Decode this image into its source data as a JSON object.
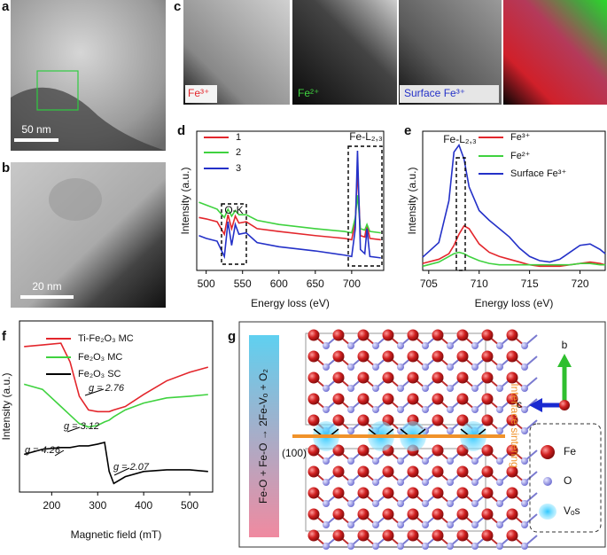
{
  "panel_labels": [
    "a",
    "b",
    "c",
    "d",
    "e",
    "f",
    "g"
  ],
  "images": {
    "a": {
      "scale_bar": "50 nm"
    },
    "b": {
      "scale_bar": "20 nm"
    },
    "c": {
      "maps": [
        "Fe³⁺",
        "Fe²⁺",
        "Surface Fe³⁺"
      ]
    }
  },
  "chart_data": [
    {
      "type": "line",
      "xlabel": "Energy loss (eV)",
      "ylabel": "Intensity (a.u.)",
      "x": [
        490,
        500,
        515,
        525,
        530,
        535,
        540,
        545,
        555,
        570,
        600,
        650,
        690,
        700,
        705,
        708,
        712,
        718,
        721,
        725,
        740
      ],
      "series": [
        {
          "name": "1",
          "color": "#e3262c",
          "values": [
            3.8,
            3.7,
            3.5,
            2.6,
            4.0,
            3.0,
            3.9,
            3.4,
            3.5,
            3.0,
            2.8,
            2.5,
            2.3,
            2.2,
            3.5,
            7.3,
            2.5,
            2.4,
            3.3,
            2.3,
            2.2
          ]
        },
        {
          "name": "2",
          "color": "#3fd23f",
          "values": [
            4.9,
            4.7,
            4.4,
            3.8,
            4.4,
            3.9,
            4.3,
            4.0,
            4.0,
            3.6,
            3.3,
            3.0,
            2.8,
            2.7,
            3.8,
            5.4,
            3.0,
            2.9,
            3.3,
            2.8,
            2.7
          ]
        },
        {
          "name": "3",
          "color": "#2431c8",
          "values": [
            2.5,
            2.3,
            2.1,
            1.0,
            3.5,
            1.8,
            3.3,
            2.6,
            2.7,
            2.0,
            1.7,
            1.4,
            1.1,
            1.0,
            3.0,
            8.6,
            1.5,
            1.2,
            3.0,
            1.0,
            0.9
          ]
        }
      ],
      "xlim": [
        487,
        744
      ],
      "xticks": [
        500,
        550,
        600,
        650,
        700
      ],
      "ylim": [
        0,
        10
      ],
      "annotations": [
        "O-K",
        "Fe-L₂,₃"
      ]
    },
    {
      "type": "line",
      "xlabel": "Energy loss (eV)",
      "ylabel": "Intensity (a.u.)",
      "x": [
        704.4,
        706,
        707,
        707.5,
        708,
        708.5,
        709,
        710,
        711,
        712,
        713,
        714,
        715,
        716,
        717,
        718,
        719,
        720,
        721,
        722,
        722.5
      ],
      "series": [
        {
          "name": "Fe³⁺",
          "color": "#e3262c",
          "values": [
            0.5,
            0.8,
            1.2,
            1.8,
            2.6,
            3.2,
            3.0,
            1.9,
            1.3,
            1.0,
            0.8,
            0.6,
            0.4,
            0.3,
            0.3,
            0.3,
            0.4,
            0.5,
            0.6,
            0.5,
            0.4
          ]
        },
        {
          "name": "Fe²⁺",
          "color": "#3fd23f",
          "values": [
            0.3,
            0.6,
            1.0,
            1.2,
            1.3,
            1.2,
            1.0,
            0.7,
            0.5,
            0.4,
            0.4,
            0.4,
            0.4,
            0.4,
            0.4,
            0.4,
            0.4,
            0.5,
            0.5,
            0.4,
            0.4
          ]
        },
        {
          "name": "Surface Fe³⁺",
          "color": "#2431c8",
          "values": [
            0.95,
            2.0,
            5.0,
            8.5,
            9.0,
            8.0,
            6.0,
            4.3,
            3.6,
            3.0,
            2.4,
            1.6,
            1.0,
            0.7,
            0.6,
            0.8,
            1.3,
            1.8,
            1.9,
            1.5,
            1.2
          ]
        }
      ],
      "xlim": [
        704.4,
        722.5
      ],
      "xticks": [
        705,
        710,
        715,
        720
      ],
      "ylim": [
        0,
        10
      ],
      "annotations": [
        "Fe-L₂,₃"
      ]
    },
    {
      "type": "line",
      "xlabel": "Magnetic field (mT)",
      "ylabel": "Intensity (a.u.)",
      "x": [
        140,
        180,
        220,
        240,
        260,
        280,
        300,
        315,
        325,
        335,
        360,
        400,
        450,
        500,
        540
      ],
      "series": [
        {
          "name": "Ti-Fe₂O₃ MC",
          "color": "#e3262c",
          "values": [
            8.5,
            8.6,
            8.7,
            7.6,
            5.6,
            4.8,
            4.7,
            4.7,
            4.7,
            4.8,
            5.0,
            5.7,
            6.5,
            7.0,
            7.3
          ]
        },
        {
          "name": "Fe₂O₃ MC",
          "color": "#3fd23f",
          "values": [
            6.3,
            6.0,
            5.0,
            4.5,
            4.0,
            3.8,
            3.9,
            4.1,
            4.2,
            4.4,
            4.8,
            5.2,
            5.5,
            5.6,
            5.7
          ]
        },
        {
          "name": "Fe₂O₃ SC",
          "color": "#000000",
          "values": [
            2.2,
            2.5,
            2.6,
            2.6,
            2.7,
            2.7,
            2.8,
            2.9,
            1.2,
            0.5,
            0.9,
            1.2,
            1.3,
            1.3,
            1.2
          ]
        }
      ],
      "xlim": [
        130,
        550
      ],
      "xticks": [
        200,
        300,
        400,
        500
      ],
      "ylim": [
        0,
        10
      ],
      "annotations": [
        "g = 2.76",
        "g = 3.12",
        "g = 4.26",
        "g = 2.07"
      ]
    }
  ],
  "diagram": {
    "equation": "Fe-O + Fe-O → 2Fe-Vₒ + O₂",
    "interface_label": "Interface sintering",
    "plane": "(100)",
    "axes": [
      "b",
      "c"
    ],
    "legend": [
      "Fe",
      "O",
      "Vₒs"
    ]
  }
}
